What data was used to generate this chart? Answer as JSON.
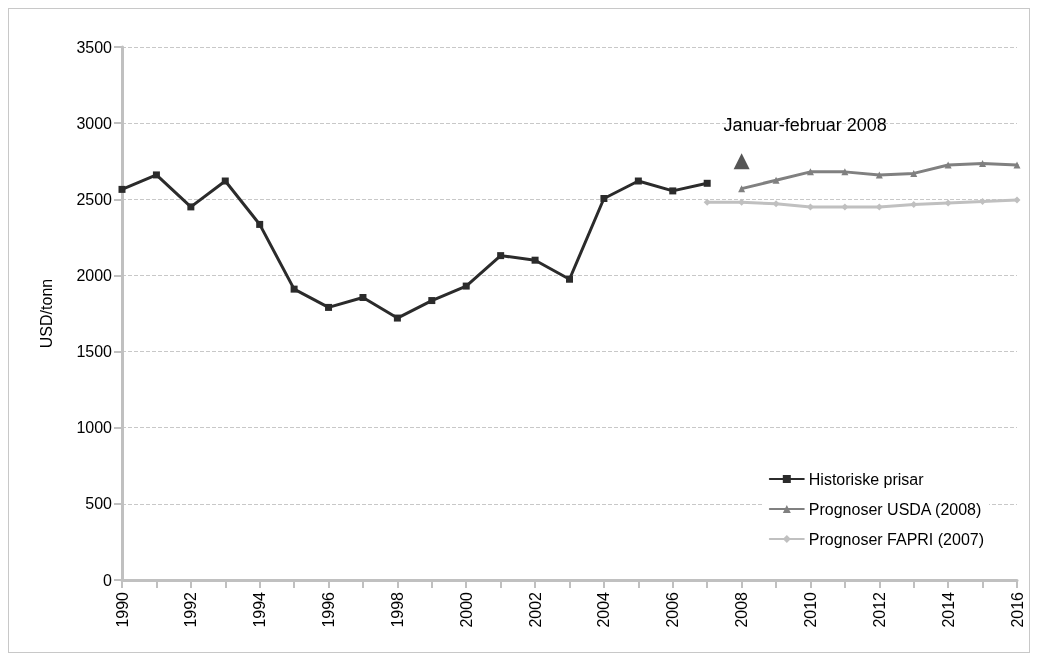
{
  "chart_data": {
    "type": "line",
    "ylabel": "USD/tonn",
    "categories": [
      "1990",
      null,
      "1992",
      null,
      "1994",
      null,
      "1996",
      null,
      "1998",
      null,
      "2000",
      null,
      "2002",
      null,
      "2004",
      null,
      "2006",
      null,
      "2008",
      null,
      "2010",
      null,
      "2012",
      null,
      "2014",
      null,
      "2016"
    ],
    "ylim": [
      0,
      3500
    ],
    "yticks": [
      0,
      500,
      1000,
      1500,
      2000,
      2500,
      3000,
      3500
    ],
    "grid": "y",
    "line_style": "solid",
    "legend": "bottom right",
    "series": [
      {
        "name": "Historiske prisar",
        "color": "#2b2b2b",
        "marker": "square",
        "values": [
          2565,
          2660,
          2450,
          2620,
          2335,
          1910,
          1790,
          1855,
          1720,
          1835,
          1930,
          2130,
          2100,
          1975,
          2505,
          2620,
          2555,
          2605,
          null,
          null,
          null,
          null,
          null,
          null,
          null,
          null,
          null
        ]
      },
      {
        "name": "Prognoser USDA (2008)",
        "color": "#808080",
        "marker": "triangle",
        "values": [
          null,
          null,
          null,
          null,
          null,
          null,
          null,
          null,
          null,
          null,
          null,
          null,
          null,
          null,
          null,
          null,
          null,
          null,
          2570,
          2625,
          2680,
          2680,
          2660,
          2670,
          2725,
          2735,
          2725
        ]
      },
      {
        "name": "Prognoser FAPRI (2007)",
        "color": "#c0c0c0",
        "marker": "diamond",
        "values": [
          null,
          null,
          null,
          null,
          null,
          null,
          null,
          null,
          null,
          null,
          null,
          null,
          null,
          null,
          null,
          null,
          null,
          2480,
          2480,
          2470,
          2450,
          2450,
          2450,
          2465,
          2475,
          2485,
          2495
        ]
      },
      {
        "type": "scatter",
        "color": "#2b2b2b",
        "marker": "triangle",
        "values": [
          null,
          null,
          null,
          null,
          null,
          null,
          null,
          null,
          null,
          null,
          null,
          null,
          null,
          null,
          null,
          null,
          null,
          null,
          2750,
          null,
          null,
          null,
          null,
          null,
          null,
          null,
          null
        ]
      }
    ],
    "annotations": [
      {
        "text": "Januar-februar 2008",
        "x": "2008",
        "y": 2750
      }
    ]
  }
}
